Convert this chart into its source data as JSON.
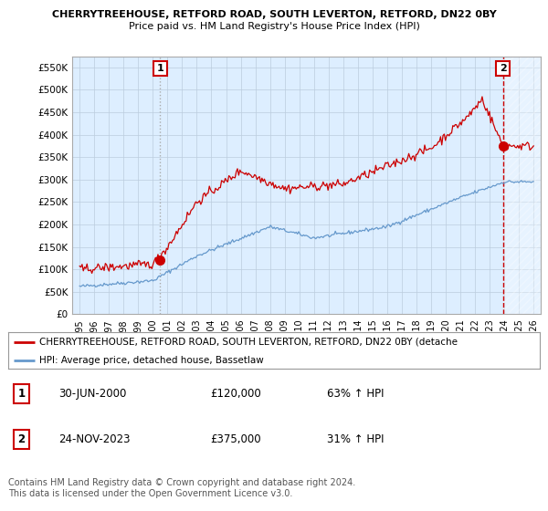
{
  "title1": "CHERRYTREEHOUSE, RETFORD ROAD, SOUTH LEVERTON, RETFORD, DN22 0BY",
  "title2": "Price paid vs. HM Land Registry's House Price Index (HPI)",
  "ylabel_ticks": [
    "£0",
    "£50K",
    "£100K",
    "£150K",
    "£200K",
    "£250K",
    "£300K",
    "£350K",
    "£400K",
    "£450K",
    "£500K",
    "£550K"
  ],
  "ylim": [
    0,
    575000
  ],
  "xlim_start": 1994.5,
  "xlim_end": 2026.5,
  "red_line_color": "#cc0000",
  "blue_line_color": "#6699cc",
  "plot_bg_color": "#ddeeff",
  "grid_color": "#bbccdd",
  "marker1_x": 2000.5,
  "marker1_y": 120000,
  "marker2_x": 2023.9,
  "marker2_y": 375000,
  "legend_red_label": "CHERRYTREEHOUSE, RETFORD ROAD, SOUTH LEVERTON, RETFORD, DN22 0BY (detache",
  "legend_blue_label": "HPI: Average price, detached house, Bassetlaw",
  "table_row1": [
    "1",
    "30-JUN-2000",
    "£120,000",
    "63% ↑ HPI"
  ],
  "table_row2": [
    "2",
    "24-NOV-2023",
    "£375,000",
    "31% ↑ HPI"
  ],
  "footer1": "Contains HM Land Registry data © Crown copyright and database right 2024.",
  "footer2": "This data is licensed under the Open Government Licence v3.0.",
  "bg_color": "#ffffff",
  "hatch_start": 2024.0
}
